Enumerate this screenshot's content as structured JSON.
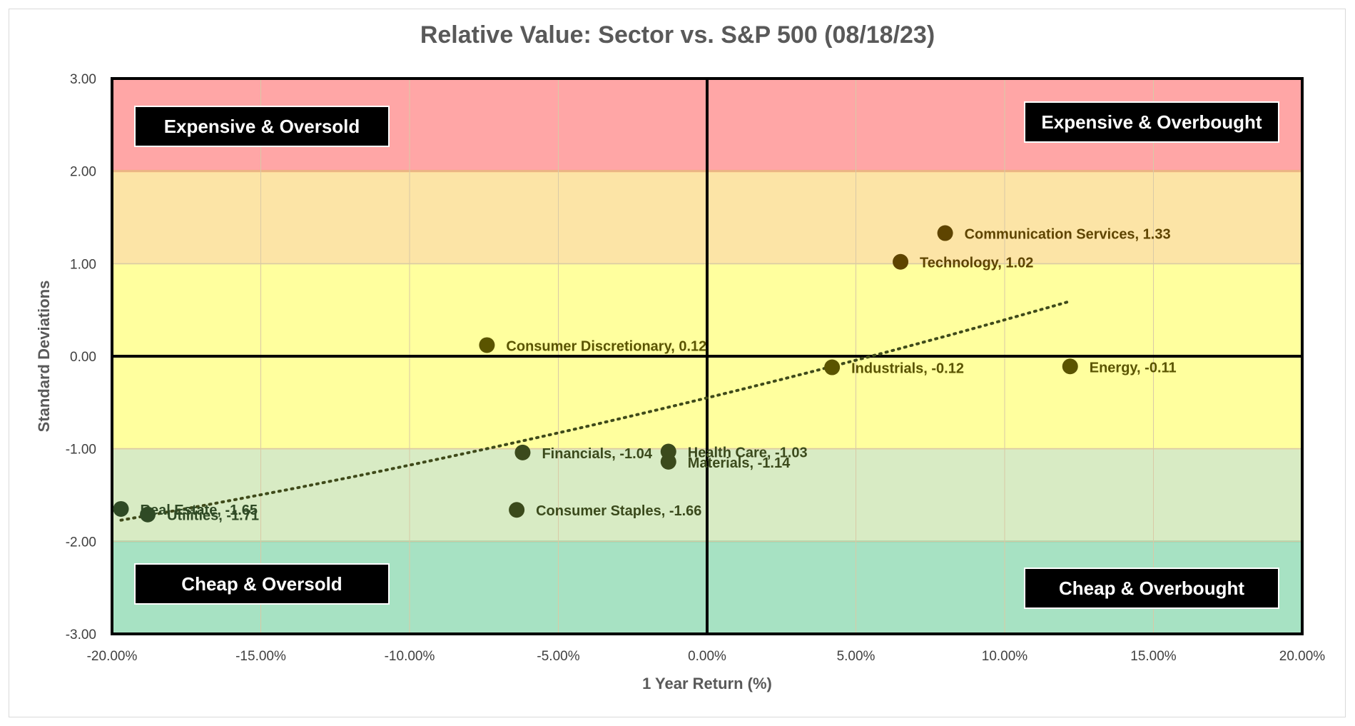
{
  "chart_data": {
    "type": "scatter",
    "title": "Relative Value: Sector vs. S&P 500 (08/18/23)",
    "xlabel": "1 Year Return (%)",
    "ylabel": "Standard Deviations",
    "xlim": [
      -20,
      20
    ],
    "ylim": [
      -3,
      3
    ],
    "x_ticks": [
      "-20.00%",
      "-15.00%",
      "-10.00%",
      "-5.00%",
      "0.00%",
      "5.00%",
      "10.00%",
      "15.00%",
      "20.00%"
    ],
    "y_ticks": [
      "3.00",
      "2.00",
      "1.00",
      "0.00",
      "-1.00",
      "-2.00",
      "-3.00"
    ],
    "grid": true,
    "bands": [
      {
        "from": 2,
        "to": 3,
        "color": "#ffa6a6"
      },
      {
        "from": 1,
        "to": 2,
        "color": "#fce4a6"
      },
      {
        "from": -1,
        "to": 1,
        "color": "#ffff9e"
      },
      {
        "from": -2,
        "to": -1,
        "color": "#d8ebc4"
      },
      {
        "from": -3,
        "to": -2,
        "color": "#a7e2c3"
      }
    ],
    "quadrant_labels": {
      "top_left": "Expensive & Oversold",
      "top_right": "Expensive & Overbought",
      "bottom_left": "Cheap & Oversold",
      "bottom_right": "Cheap & Overbought"
    },
    "points": [
      {
        "label": "Communication Services, 1.33",
        "x": 8.0,
        "y": 1.33,
        "color": "#5e4400"
      },
      {
        "label": "Technology, 1.02",
        "x": 6.5,
        "y": 1.02,
        "color": "#5e4400"
      },
      {
        "label": "Consumer Discretionary, 0.12",
        "x": -7.4,
        "y": 0.12,
        "color": "#5a5400"
      },
      {
        "label": "Industrials, -0.12",
        "x": 4.2,
        "y": -0.12,
        "color": "#5a5400"
      },
      {
        "label": "Energy, -0.11",
        "x": 12.2,
        "y": -0.11,
        "color": "#5a5400"
      },
      {
        "label": "Financials, -1.04",
        "x": -6.2,
        "y": -1.04,
        "color": "#3b4a1c"
      },
      {
        "label": "Health Care, -1.03",
        "x": -1.3,
        "y": -1.03,
        "color": "#3b4a1c"
      },
      {
        "label": "Materials, -1.14",
        "x": -1.3,
        "y": -1.14,
        "color": "#3b4a1c"
      },
      {
        "label": "Consumer Staples, -1.66",
        "x": -6.4,
        "y": -1.66,
        "color": "#3b4a1c"
      },
      {
        "label": "Real Estate, -1.65",
        "x": -19.7,
        "y": -1.65,
        "color": "#2f4a25"
      },
      {
        "label": "Utilities, -1.71",
        "x": -18.8,
        "y": -1.71,
        "color": "#2f4a25"
      }
    ],
    "trendline": {
      "style": "dotted",
      "color": "#3f4a1a",
      "from": [
        -19.7,
        -1.7
      ],
      "to": [
        12.2,
        0.8
      ]
    }
  }
}
